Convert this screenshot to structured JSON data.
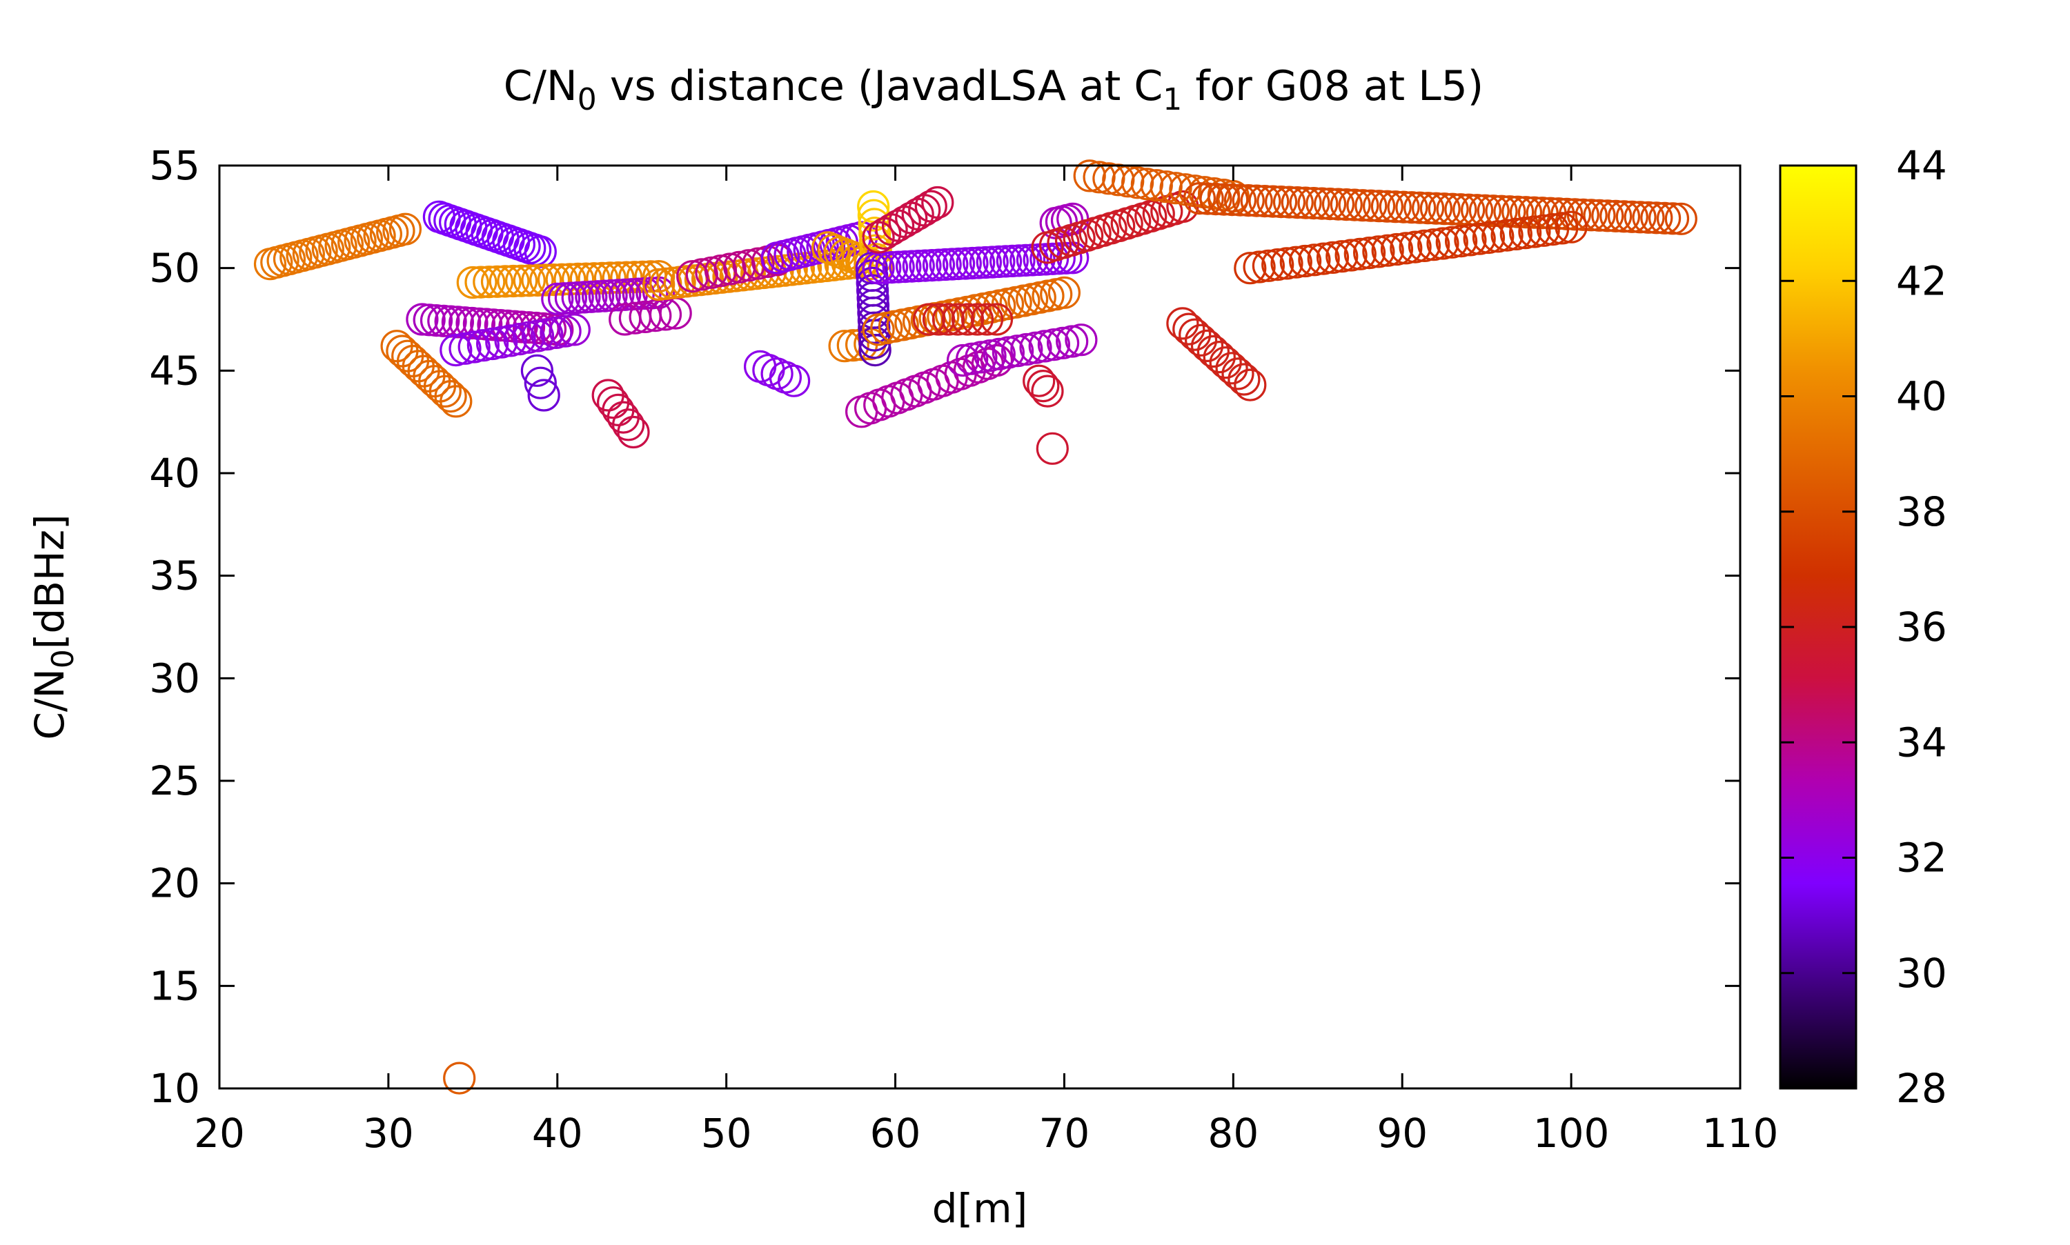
{
  "chart_data": {
    "type": "scatter",
    "title": "C/N0 vs distance (JavadLSA at C1 for G08 at L5)",
    "title_parts": {
      "t1": "C/N",
      "t1_sub": "0",
      "t2": " vs distance (JavadLSA at C",
      "t2_sub": "1",
      "t3": " for G08 at L5)"
    },
    "xlabel": "d[m]",
    "ylabel": "C/N0[dBHz]",
    "ylabel_parts": {
      "p1": "C/N",
      "p1_sub": "0",
      "p2": "[dBHz]"
    },
    "xlim": [
      20,
      110
    ],
    "ylim": [
      10,
      55
    ],
    "xticks": [
      "20",
      "30",
      "40",
      "50",
      "60",
      "70",
      "80",
      "90",
      "100",
      "110"
    ],
    "yticks": [
      "10",
      "15",
      "20",
      "25",
      "30",
      "35",
      "40",
      "45",
      "50",
      "55"
    ],
    "grid": false,
    "legend": "none",
    "marker": "open-circle",
    "colorbar": {
      "range": [
        28,
        44
      ],
      "ticks": [
        "28",
        "30",
        "32",
        "34",
        "36",
        "38",
        "40",
        "42",
        "44"
      ],
      "colormap": [
        "#000000",
        "#40007f",
        "#8000ff",
        "#b000b0",
        "#cc1040",
        "#d03000",
        "#e06000",
        "#f09000",
        "#ffd000",
        "#ffff00"
      ]
    },
    "segments": [
      {
        "x0": 23.0,
        "x1": 31.0,
        "y0": 50.2,
        "y1": 51.9,
        "c0": 39.5,
        "c1": 39.2,
        "n": 22
      },
      {
        "x0": 30.5,
        "x1": 34.0,
        "y0": 46.2,
        "y1": 43.5,
        "c0": 39.0,
        "c1": 39.0,
        "n": 12
      },
      {
        "x0": 33.0,
        "x1": 39.0,
        "y0": 52.5,
        "y1": 50.8,
        "c0": 31.5,
        "c1": 31.5,
        "n": 20
      },
      {
        "x0": 32.0,
        "x1": 40.0,
        "y0": 47.5,
        "y1": 47.0,
        "c0": 33.0,
        "c1": 33.5,
        "n": 20
      },
      {
        "x0": 34.0,
        "x1": 41.0,
        "y0": 46.0,
        "y1": 47.0,
        "c0": 32.0,
        "c1": 32.5,
        "n": 14
      },
      {
        "x0": 38.8,
        "x1": 39.2,
        "y0": 45.0,
        "y1": 43.8,
        "c0": 31.0,
        "c1": 31.0,
        "n": 3
      },
      {
        "x0": 35.0,
        "x1": 46.0,
        "y0": 49.3,
        "y1": 49.6,
        "c0": 40.5,
        "c1": 40.0,
        "n": 24
      },
      {
        "x0": 40.0,
        "x1": 46.0,
        "y0": 48.5,
        "y1": 48.8,
        "c0": 32.5,
        "c1": 33.0,
        "n": 16
      },
      {
        "x0": 43.0,
        "x1": 44.5,
        "y0": 43.8,
        "y1": 42.0,
        "c0": 35.0,
        "c1": 35.0,
        "n": 6
      },
      {
        "x0": 44.0,
        "x1": 47.0,
        "y0": 47.5,
        "y1": 47.8,
        "c0": 33.5,
        "c1": 33.5,
        "n": 6
      },
      {
        "x0": 46.0,
        "x1": 58.0,
        "y0": 49.2,
        "y1": 50.3,
        "c0": 40.0,
        "c1": 40.5,
        "n": 30
      },
      {
        "x0": 48.0,
        "x1": 53.0,
        "y0": 49.6,
        "y1": 50.4,
        "c0": 34.0,
        "c1": 34.0,
        "n": 10
      },
      {
        "x0": 52.0,
        "x1": 54.0,
        "y0": 45.2,
        "y1": 44.5,
        "c0": 32.0,
        "c1": 32.0,
        "n": 5
      },
      {
        "x0": 53.0,
        "x1": 58.0,
        "y0": 50.5,
        "y1": 51.5,
        "c0": 32.0,
        "c1": 32.0,
        "n": 14
      },
      {
        "x0": 56.0,
        "x1": 58.5,
        "y0": 51.0,
        "y1": 50.2,
        "c0": 40.5,
        "c1": 40.5,
        "n": 8
      },
      {
        "x0": 57.0,
        "x1": 58.5,
        "y0": 46.2,
        "y1": 46.3,
        "c0": 39.5,
        "c1": 39.5,
        "n": 4
      },
      {
        "x0": 58.7,
        "x1": 58.9,
        "y0": 53.0,
        "y1": 50.0,
        "c0": 42.5,
        "c1": 41.0,
        "n": 8
      },
      {
        "x0": 58.6,
        "x1": 58.8,
        "y0": 50.0,
        "y1": 46.0,
        "c0": 31.0,
        "c1": 30.5,
        "n": 12
      },
      {
        "x0": 59.0,
        "x1": 70.5,
        "y0": 50.0,
        "y1": 50.5,
        "c0": 32.0,
        "c1": 32.0,
        "n": 30
      },
      {
        "x0": 59.0,
        "x1": 62.5,
        "y0": 51.5,
        "y1": 53.2,
        "c0": 35.0,
        "c1": 35.0,
        "n": 10
      },
      {
        "x0": 59.0,
        "x1": 70.0,
        "y0": 47.0,
        "y1": 48.8,
        "c0": 39.0,
        "c1": 39.0,
        "n": 24
      },
      {
        "x0": 58.0,
        "x1": 66.0,
        "y0": 43.0,
        "y1": 45.5,
        "c0": 33.5,
        "c1": 33.5,
        "n": 16
      },
      {
        "x0": 62.0,
        "x1": 66.0,
        "y0": 47.5,
        "y1": 47.5,
        "c0": 36.0,
        "c1": 36.0,
        "n": 8
      },
      {
        "x0": 64.0,
        "x1": 71.0,
        "y0": 45.5,
        "y1": 46.5,
        "c0": 33.0,
        "c1": 33.0,
        "n": 14
      },
      {
        "x0": 68.5,
        "x1": 69.0,
        "y0": 44.5,
        "y1": 44.0,
        "c0": 35.5,
        "c1": 35.5,
        "n": 3
      },
      {
        "x0": 69.5,
        "x1": 70.5,
        "y0": 52.2,
        "y1": 52.4,
        "c0": 33.0,
        "c1": 33.0,
        "n": 4
      },
      {
        "x0": 69.0,
        "x1": 77.0,
        "y0": 51.0,
        "y1": 53.0,
        "c0": 35.8,
        "c1": 35.8,
        "n": 18
      },
      {
        "x0": 71.5,
        "x1": 80.0,
        "y0": 54.5,
        "y1": 53.5,
        "c0": 38.5,
        "c1": 38.5,
        "n": 16
      },
      {
        "x0": 78.0,
        "x1": 106.5,
        "y0": 53.4,
        "y1": 52.4,
        "c0": 37.8,
        "c1": 37.8,
        "n": 60
      },
      {
        "x0": 81.0,
        "x1": 100.0,
        "y0": 50.0,
        "y1": 52.0,
        "c0": 37.0,
        "c1": 37.0,
        "n": 36
      },
      {
        "x0": 77.0,
        "x1": 81.0,
        "y0": 47.3,
        "y1": 44.3,
        "c0": 36.2,
        "c1": 36.2,
        "n": 12
      }
    ],
    "points": [
      {
        "x": 69.3,
        "y": 41.2,
        "c": 35.5
      },
      {
        "x": 34.2,
        "y": 10.5,
        "c": 38.5
      }
    ]
  }
}
